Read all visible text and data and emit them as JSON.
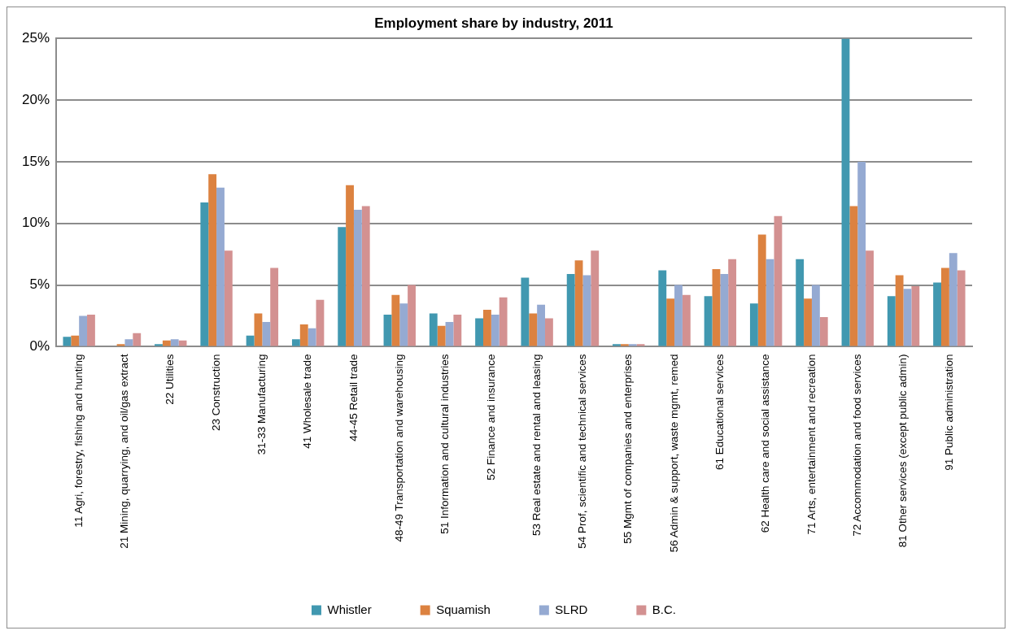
{
  "chart_data": {
    "type": "bar",
    "title": "Employment share by industry, 2011",
    "categories": [
      "11 Agri, forestry, fishing and hunting",
      "21 Mining, quarrying, and oil/gas extract",
      "22 Utilities",
      "23 Construction",
      "31-33 Manufacturing",
      "41 Wholesale trade",
      "44-45 Retail trade",
      "48-49 Transportation and warehousing",
      "51 Information and cultural industries",
      "52 Finance and insurance",
      "53 Real estate and rental and leasing",
      "54 Prof, scientific and technical services",
      "55 Mgmt of companies and enterprises",
      "56 Admin & support, waste mgmt, remed",
      "61 Educational services",
      "62 Health care and social assistance",
      "71 Arts, entertainment and recreation",
      "72 Accommodation and food services",
      "81 Other services (except public admin)",
      "91 Public administration"
    ],
    "series": [
      {
        "name": "Whistler",
        "color": "#4198b0",
        "values": [
          0.8,
          0,
          0.2,
          11.7,
          0.9,
          0.6,
          9.7,
          2.6,
          2.7,
          2.3,
          5.6,
          5.9,
          0.2,
          6.2,
          4.1,
          3.5,
          7.1,
          25,
          4.1,
          5.2
        ]
      },
      {
        "name": "Squamish",
        "color": "#dc8240",
        "values": [
          0.9,
          0.2,
          0.5,
          14.0,
          2.7,
          1.8,
          13.1,
          4.2,
          1.7,
          3.0,
          2.7,
          7.0,
          0.2,
          3.9,
          6.3,
          9.1,
          3.9,
          11.4,
          5.8,
          6.4
        ]
      },
      {
        "name": "SLRD",
        "color": "#95aad2",
        "values": [
          2.5,
          0.6,
          0.6,
          12.9,
          2.0,
          1.5,
          11.1,
          3.5,
          2.0,
          2.6,
          3.4,
          5.8,
          0.2,
          5.0,
          5.9,
          7.1,
          5.0,
          15.0,
          4.7,
          7.6
        ]
      },
      {
        "name": "B.C.",
        "color": "#d39191",
        "values": [
          2.6,
          1.1,
          0.5,
          7.8,
          6.4,
          3.8,
          11.4,
          5.0,
          2.6,
          4.0,
          2.3,
          7.8,
          0.2,
          4.2,
          7.1,
          10.6,
          2.4,
          7.8,
          4.9,
          6.2
        ]
      }
    ],
    "ylim": [
      0,
      25
    ],
    "yticks": [
      {
        "value": 0,
        "label": "0%"
      },
      {
        "value": 5,
        "label": "5%"
      },
      {
        "value": 10,
        "label": "10%"
      },
      {
        "value": 15,
        "label": "15%"
      },
      {
        "value": 20,
        "label": "20%"
      },
      {
        "value": 25,
        "label": "25%"
      }
    ],
    "grid": "y",
    "legend": "bottom"
  }
}
